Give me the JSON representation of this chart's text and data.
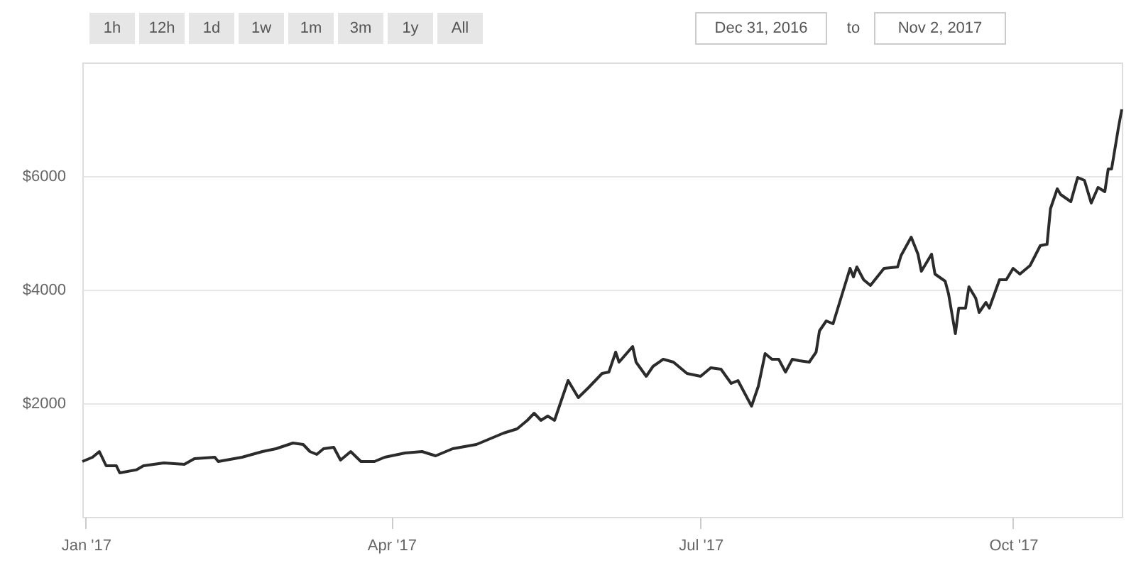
{
  "chart_data": {
    "type": "line",
    "annotations": [
      "1h",
      "12h",
      "1d",
      "1w",
      "1m",
      "3m",
      "1y",
      "All",
      "Dec 31, 2016",
      "to",
      "Nov 2, 2017"
    ],
    "x": [
      "2016-12-31",
      "2017-01-03",
      "2017-01-05",
      "2017-01-07",
      "2017-01-10",
      "2017-01-11",
      "2017-01-16",
      "2017-01-18",
      "2017-01-24",
      "2017-01-30",
      "2017-02-02",
      "2017-02-08",
      "2017-02-09",
      "2017-02-16",
      "2017-02-22",
      "2017-02-26",
      "2017-03-03",
      "2017-03-06",
      "2017-03-08",
      "2017-03-10",
      "2017-03-12",
      "2017-03-15",
      "2017-03-17",
      "2017-03-20",
      "2017-03-23",
      "2017-03-27",
      "2017-03-30",
      "2017-04-05",
      "2017-04-10",
      "2017-04-14",
      "2017-04-19",
      "2017-04-26",
      "2017-04-30",
      "2017-05-04",
      "2017-05-08",
      "2017-05-11",
      "2017-05-13",
      "2017-05-15",
      "2017-05-17",
      "2017-05-19",
      "2017-05-21",
      "2017-05-23",
      "2017-05-26",
      "2017-05-29",
      "2017-06-02",
      "2017-06-04",
      "2017-06-06",
      "2017-06-07",
      "2017-06-11",
      "2017-06-12",
      "2017-06-15",
      "2017-06-17",
      "2017-06-20",
      "2017-06-23",
      "2017-06-27",
      "2017-07-01",
      "2017-07-04",
      "2017-07-07",
      "2017-07-10",
      "2017-07-12",
      "2017-07-16",
      "2017-07-18",
      "2017-07-20",
      "2017-07-22",
      "2017-07-24",
      "2017-07-26",
      "2017-07-28",
      "2017-07-30",
      "2017-08-02",
      "2017-08-04",
      "2017-08-05",
      "2017-08-07",
      "2017-08-09",
      "2017-08-14",
      "2017-08-15",
      "2017-08-16",
      "2017-08-18",
      "2017-08-20",
      "2017-08-24",
      "2017-08-28",
      "2017-08-29",
      "2017-09-01",
      "2017-09-03",
      "2017-09-04",
      "2017-09-07",
      "2017-09-08",
      "2017-09-11",
      "2017-09-12",
      "2017-09-14",
      "2017-09-15",
      "2017-09-17",
      "2017-09-18",
      "2017-09-20",
      "2017-09-21",
      "2017-09-23",
      "2017-09-24",
      "2017-09-27",
      "2017-09-29",
      "2017-10-01",
      "2017-10-03",
      "2017-10-06",
      "2017-10-09",
      "2017-10-11",
      "2017-10-12",
      "2017-10-14",
      "2017-10-15",
      "2017-10-18",
      "2017-10-20",
      "2017-10-22",
      "2017-10-24",
      "2017-10-26",
      "2017-10-28",
      "2017-10-29",
      "2017-10-30",
      "2017-11-01",
      "2017-11-02"
    ],
    "series": [
      {
        "color": "#2b2b2b",
        "values": [
          975,
          1050,
          1150,
          900,
          900,
          775,
          830,
          900,
          950,
          925,
          1025,
          1050,
          975,
          1050,
          1150,
          1200,
          1300,
          1275,
          1150,
          1100,
          1200,
          1225,
          1000,
          1150,
          975,
          975,
          1050,
          1125,
          1150,
          1075,
          1200,
          1275,
          1375,
          1475,
          1550,
          1700,
          1825,
          1700,
          1775,
          1700,
          2050,
          2400,
          2100,
          2275,
          2525,
          2550,
          2900,
          2725,
          3000,
          2725,
          2475,
          2650,
          2775,
          2725,
          2525,
          2475,
          2625,
          2600,
          2350,
          2400,
          1950,
          2300,
          2875,
          2775,
          2775,
          2550,
          2775,
          2750,
          2725,
          2900,
          3275,
          3450,
          3400,
          4375,
          4225,
          4400,
          4175,
          4075,
          4375,
          4400,
          4600,
          4925,
          4625,
          4325,
          4625,
          4275,
          4150,
          3925,
          3225,
          3675,
          3675,
          4050,
          3850,
          3600,
          3775,
          3675,
          4175,
          4175,
          4375,
          4275,
          4425,
          4775,
          4800,
          5425,
          5775,
          5675,
          5550,
          5975,
          5925,
          5525,
          5800,
          5725,
          6125,
          6125,
          6850,
          7175
        ]
      }
    ],
    "xlim": [
      "2016-12-31",
      "2017-11-02"
    ],
    "xticks": [
      {
        "value": "2017-01-01",
        "label": "Jan '17"
      },
      {
        "value": "2017-04-01",
        "label": "Apr '17"
      },
      {
        "value": "2017-07-01",
        "label": "Jul '17"
      },
      {
        "value": "2017-10-01",
        "label": "Oct '17"
      }
    ],
    "ylim": [
      0,
      8000
    ],
    "yticks": [
      {
        "value": 2000,
        "label": "$2000"
      },
      {
        "value": 4000,
        "label": "$4000"
      },
      {
        "value": 6000,
        "label": "$6000"
      }
    ],
    "grid": "y",
    "marker": "none",
    "line_style": "solid"
  }
}
